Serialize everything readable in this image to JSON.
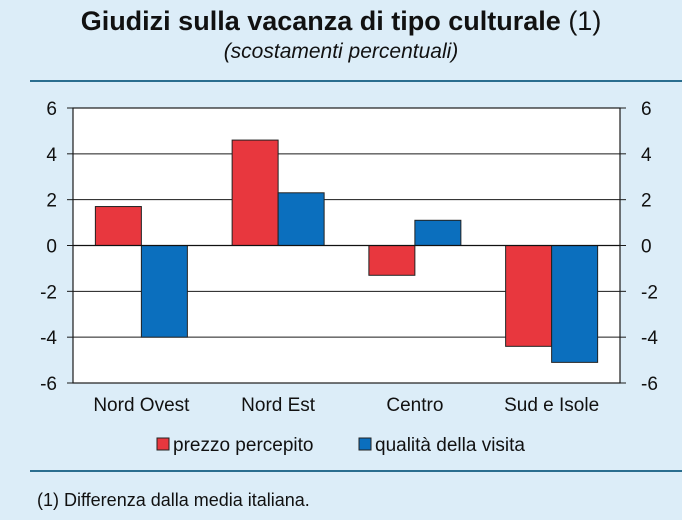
{
  "title": {
    "main": "Giudizi sulla vacanza di tipo culturale",
    "note": "(1)"
  },
  "subtitle": "(scostamenti percentuali)",
  "footnote": "(1) Differenza dalla media italiana.",
  "colors": {
    "background": "#dcedf8",
    "rule": "#2b6e8f"
  },
  "chart_data": {
    "type": "bar",
    "categories": [
      "Nord Ovest",
      "Nord Est",
      "Centro",
      "Sud e Isole"
    ],
    "series": [
      {
        "name": "prezzo percepito",
        "color": "#e8373e",
        "values": [
          1.7,
          4.6,
          -1.3,
          -4.4
        ]
      },
      {
        "name": "qualità della visita",
        "color": "#0b6fbe",
        "values": [
          -4.0,
          2.3,
          1.1,
          -5.1
        ]
      }
    ],
    "ylim": [
      -6,
      6
    ],
    "yticks": [
      6,
      4,
      2,
      0,
      -2,
      -4,
      -6
    ],
    "ytick_labels": [
      "6",
      "4",
      "2",
      "0",
      "-2",
      "-4",
      "-6"
    ],
    "grid": true,
    "legend": "bottom",
    "right_axis": true
  }
}
